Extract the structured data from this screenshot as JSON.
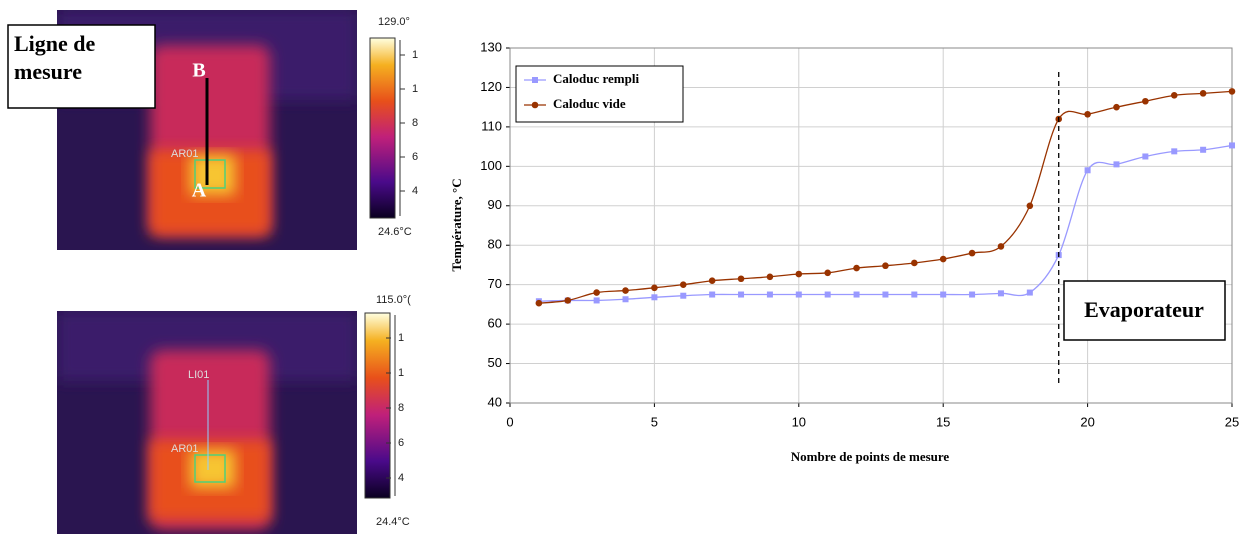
{
  "images": [
    {
      "label": "Ligne de mesure",
      "point_b": "B",
      "point_a": "A",
      "roi": "AR01",
      "max": "129.0°",
      "min": "24.6°C",
      "scale_ticks": [
        "1",
        "1",
        "8",
        "6",
        "4"
      ]
    },
    {
      "line": "LI01",
      "roi": "AR01",
      "max": "115.0°(",
      "min": "24.4°C",
      "scale_ticks": [
        "1",
        "1",
        "8",
        "6",
        "4"
      ]
    }
  ],
  "chart_data": {
    "type": "line",
    "x_label": "Nombre de points de mesure",
    "y_label": "Température, °C",
    "x": [
      1,
      2,
      3,
      4,
      5,
      6,
      7,
      8,
      9,
      10,
      11,
      12,
      13,
      14,
      15,
      16,
      17,
      18,
      19,
      20,
      21,
      22,
      23,
      24,
      25
    ],
    "series": [
      {
        "name": "Caloduc rempli",
        "color": "#9999ff",
        "marker": "square",
        "values": [
          65.8,
          66,
          66,
          66.3,
          66.8,
          67.2,
          67.5,
          67.5,
          67.5,
          67.5,
          67.5,
          67.5,
          67.5,
          67.5,
          67.5,
          67.5,
          67.8,
          68,
          77.5,
          99,
          100.5,
          102.5,
          103.8,
          104.2,
          105.3
        ]
      },
      {
        "name": "Caloduc vide",
        "color": "#993300",
        "marker": "circle",
        "values": [
          65.3,
          66,
          68,
          68.5,
          69.2,
          70,
          71,
          71.5,
          72,
          72.7,
          73,
          74.2,
          74.8,
          75.5,
          76.5,
          78,
          79.7,
          90,
          112,
          113.2,
          115,
          116.5,
          118,
          118.5,
          119
        ]
      }
    ],
    "xlim": [
      0,
      25
    ],
    "xticks": [
      0,
      5,
      10,
      15,
      20,
      25
    ],
    "ylim": [
      40,
      130
    ],
    "yticks": [
      40,
      50,
      60,
      70,
      80,
      90,
      100,
      110,
      120,
      130
    ],
    "grid": true,
    "legend": "upper left",
    "annotation": {
      "text": "Evaporateur",
      "x": 19
    }
  }
}
